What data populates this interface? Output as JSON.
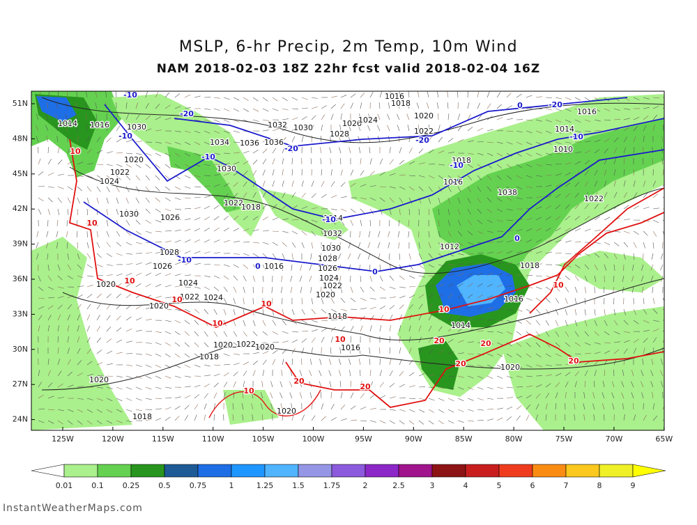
{
  "header": {
    "title": "MSLP, 6-hr Precip, 2m Temp, 10m Wind",
    "subtitle": "NAM 2018-02-03 18Z 22hr fcst valid 2018-02-04 16Z"
  },
  "map": {
    "lat_labels": [
      "51N",
      "48N",
      "45N",
      "42N",
      "39N",
      "36N",
      "33N",
      "30N",
      "27N",
      "24N"
    ],
    "lon_labels": [
      "125W",
      "120W",
      "115W",
      "110W",
      "105W",
      "100W",
      "95W",
      "90W",
      "85W",
      "80W",
      "75W",
      "70W",
      "65W"
    ],
    "pressure_labels": [
      "1014",
      "1016",
      "1030",
      "1022",
      "1024",
      "1020",
      "1032",
      "1030",
      "1028",
      "1026",
      "1024",
      "1036",
      "1036",
      "1034",
      "1030",
      "1022",
      "1018",
      "1030",
      "1026",
      "1028",
      "1026",
      "1024",
      "1022",
      "1024",
      "1020",
      "1020",
      "1032",
      "1030",
      "1028",
      "1026",
      "1024",
      "1022",
      "1020",
      "1018",
      "1016",
      "1016",
      "1012",
      "1016",
      "1018",
      "1018",
      "1016",
      "1014",
      "1020",
      "1020",
      "1018",
      "1020",
      "1018",
      "1020",
      "1022",
      "1020",
      "1014",
      "1010",
      "1022",
      "1016",
      "1016",
      "1018",
      "1020",
      "1022",
      "1038",
      "1014"
    ],
    "cold_temp_labels": [
      "-10",
      "-20",
      "-10",
      "-10",
      "-20",
      "-20",
      "-10",
      "-20",
      "-10",
      "-10",
      "0",
      "0",
      "0",
      "-10",
      "0"
    ],
    "warm_temp_labels": [
      "10",
      "10",
      "10",
      "10",
      "10",
      "10",
      "10",
      "20",
      "20",
      "10",
      "10",
      "20",
      "20",
      "10",
      "20",
      "20"
    ]
  },
  "colorbar": {
    "labels": [
      "0.01",
      "0.1",
      "0.25",
      "0.5",
      "0.75",
      "1",
      "1.25",
      "1.5",
      "1.75",
      "2",
      "2.5",
      "3",
      "4",
      "5",
      "6",
      "7",
      "8",
      "9"
    ],
    "colors": [
      "#ffffff",
      "#aaf08c",
      "#64d250",
      "#28961e",
      "#1e5a96",
      "#1e6ee6",
      "#1e96ff",
      "#50b4ff",
      "#9696e6",
      "#8c5adc",
      "#8c28c8",
      "#a0148c",
      "#8c1414",
      "#c81e1e",
      "#f03c1e",
      "#fa8c14",
      "#fac81e",
      "#f0f028",
      "#ffff00"
    ]
  },
  "footer": "InstantWeatherMaps.com"
}
